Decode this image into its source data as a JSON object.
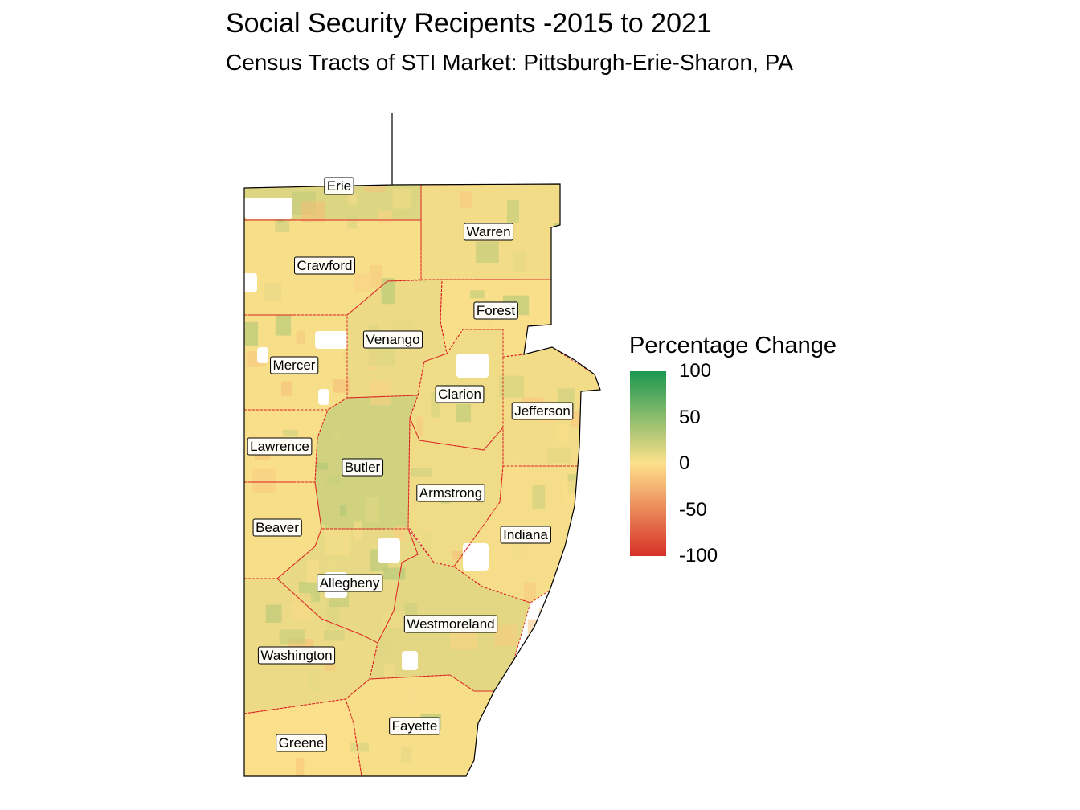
{
  "title": "Social Security Recipents -2015 to 2021",
  "subtitle": "Census Tracts of STI Market: Pittsburgh-Erie-Sharon, PA",
  "legend": {
    "title": "Percentage Change",
    "ticks": [
      "100",
      "50",
      "0",
      "-50",
      "-100"
    ],
    "range": [
      -100,
      100
    ],
    "colors": {
      "low": "#d73027",
      "mid": "#fee08b",
      "high": "#1a9850"
    }
  },
  "counties": [
    {
      "name": "Erie",
      "value": 15
    },
    {
      "name": "Warren",
      "value": 5
    },
    {
      "name": "Crawford",
      "value": 3
    },
    {
      "name": "Forest",
      "value": 2
    },
    {
      "name": "Venango",
      "value": 8
    },
    {
      "name": "Mercer",
      "value": 3
    },
    {
      "name": "Clarion",
      "value": 6
    },
    {
      "name": "Jefferson",
      "value": 5
    },
    {
      "name": "Lawrence",
      "value": 2
    },
    {
      "name": "Butler",
      "value": 20
    },
    {
      "name": "Armstrong",
      "value": 6
    },
    {
      "name": "Beaver",
      "value": 3
    },
    {
      "name": "Indiana",
      "value": 4
    },
    {
      "name": "Allegheny",
      "value": 10
    },
    {
      "name": "Westmoreland",
      "value": 12
    },
    {
      "name": "Washington",
      "value": 8
    },
    {
      "name": "Fayette",
      "value": 3
    },
    {
      "name": "Greene",
      "value": 1
    }
  ],
  "colors": {
    "county_border": "#dd2222",
    "outline": "#000000",
    "no_data": "#ffffff"
  }
}
